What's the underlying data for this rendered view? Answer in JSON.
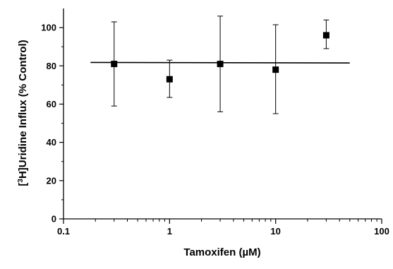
{
  "chart_data": {
    "type": "scatter",
    "xlabel": "Tamoxifen (µM)",
    "ylabel": "Uridine Influx (% Control)",
    "ylabel_prefix": "[",
    "ylabel_superscript": "3",
    "ylabel_element": "H]",
    "x_scale": "log",
    "xlim": [
      0.1,
      100
    ],
    "ylim": [
      0,
      110
    ],
    "x_ticks": [
      0.1,
      1,
      10,
      100
    ],
    "x_tick_labels": [
      "0.1",
      "1",
      "10",
      "100"
    ],
    "y_ticks": [
      0,
      20,
      40,
      60,
      80,
      100
    ],
    "y_tick_labels": [
      "0",
      "20",
      "40",
      "60",
      "80",
      "100"
    ],
    "grid": false,
    "series": [
      {
        "marker": "square",
        "color": "#000000",
        "points": [
          {
            "x": 0.3,
            "y": 81,
            "err_low": 59,
            "err_high": 103
          },
          {
            "x": 1,
            "y": 73,
            "err_low": 63.5,
            "err_high": 83
          },
          {
            "x": 3,
            "y": 81,
            "err_low": 56,
            "err_high": 106
          },
          {
            "x": 10,
            "y": 78,
            "err_low": 55,
            "err_high": 101.5
          },
          {
            "x": 30,
            "y": 96,
            "err_low": 89,
            "err_high": 104
          }
        ]
      }
    ],
    "reference_line": {
      "x_start": 0.18,
      "x_end": 50,
      "y_start": 81.8,
      "y_end": 81.5
    }
  }
}
